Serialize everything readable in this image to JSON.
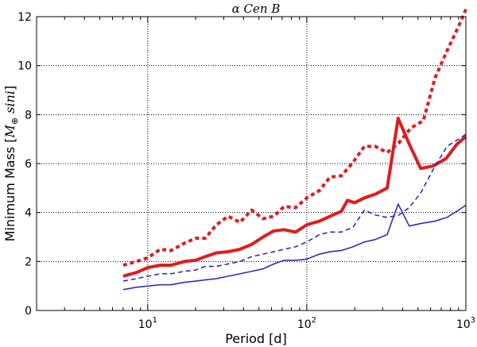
{
  "chart_data": {
    "type": "line",
    "title": "α Cen B",
    "xlabel": "Period [d]",
    "ylabel": {
      "prefix": "Minimum Mass [",
      "mass": "M",
      "sub": "⊕",
      "sini": " sini",
      "suffix": "]"
    },
    "xscale": "log",
    "xlim": [
      2,
      1000
    ],
    "ylim": [
      0,
      12
    ],
    "grid": true,
    "xticks": [
      {
        "value": 10,
        "base": "10",
        "exp": "1"
      },
      {
        "value": 100,
        "base": "10",
        "exp": "2"
      },
      {
        "value": 1000,
        "base": "10",
        "exp": "3"
      }
    ],
    "yticks": [
      {
        "value": 0,
        "label": "0"
      },
      {
        "value": 2,
        "label": "2"
      },
      {
        "value": 4,
        "label": "4"
      },
      {
        "value": 6,
        "label": "6"
      },
      {
        "value": 8,
        "label": "8"
      },
      {
        "value": 10,
        "label": "10"
      },
      {
        "value": 12,
        "label": "12"
      }
    ],
    "series": [
      {
        "color": "#e41a1c",
        "style": "dotted",
        "width": 4,
        "x": [
          7,
          8.5,
          10,
          12,
          14,
          17,
          20,
          23,
          27,
          32,
          38,
          45,
          53,
          62,
          72,
          85,
          100,
          120,
          140,
          165,
          195,
          230,
          270,
          320,
          380,
          450,
          540,
          640,
          760,
          900,
          1000
        ],
        "y": [
          1.85,
          2.0,
          2.15,
          2.5,
          2.45,
          2.75,
          2.95,
          2.95,
          3.5,
          3.85,
          3.6,
          4.1,
          3.75,
          3.85,
          4.25,
          4.2,
          4.6,
          4.9,
          5.45,
          5.5,
          6.05,
          6.7,
          6.7,
          6.45,
          6.85,
          7.45,
          7.75,
          9.5,
          10.6,
          11.6,
          12.3
        ]
      },
      {
        "color": "#e41a1c",
        "style": "solid",
        "width": 4,
        "x": [
          7,
          8.5,
          10,
          12,
          14,
          17,
          20,
          23,
          27,
          32,
          38,
          45,
          53,
          62,
          72,
          85,
          100,
          120,
          140,
          165,
          180,
          200,
          230,
          270,
          320,
          375,
          440,
          520,
          620,
          750,
          880,
          1000
        ],
        "y": [
          1.4,
          1.55,
          1.75,
          1.85,
          1.85,
          2.0,
          2.05,
          2.2,
          2.35,
          2.4,
          2.5,
          2.7,
          3.0,
          3.25,
          3.3,
          3.2,
          3.5,
          3.65,
          3.85,
          4.05,
          4.5,
          4.4,
          4.6,
          4.75,
          5.0,
          7.85,
          6.8,
          5.8,
          5.9,
          6.2,
          6.8,
          7.1
        ]
      },
      {
        "color": "#1f1fcc",
        "style": "dashed",
        "width": 1.5,
        "x": [
          7,
          8.5,
          10,
          12,
          14,
          17,
          20,
          23,
          27,
          32,
          38,
          45,
          53,
          62,
          72,
          85,
          100,
          120,
          140,
          165,
          195,
          230,
          270,
          320,
          380,
          440,
          520,
          640,
          760,
          900,
          1000
        ],
        "y": [
          1.2,
          1.3,
          1.4,
          1.5,
          1.5,
          1.6,
          1.65,
          1.8,
          1.8,
          1.9,
          2.0,
          2.2,
          2.3,
          2.4,
          2.5,
          2.6,
          2.8,
          3.1,
          3.2,
          3.2,
          3.4,
          4.1,
          3.9,
          3.8,
          3.9,
          4.2,
          4.8,
          5.9,
          6.7,
          7.0,
          7.2
        ]
      },
      {
        "color": "#1f1fcc",
        "style": "solid",
        "width": 1.5,
        "x": [
          7,
          8.5,
          10,
          12,
          14,
          17,
          20,
          23,
          27,
          32,
          38,
          45,
          53,
          62,
          72,
          85,
          100,
          120,
          140,
          165,
          195,
          230,
          270,
          320,
          375,
          440,
          520,
          640,
          760,
          900,
          1000
        ],
        "y": [
          0.85,
          0.95,
          1.0,
          1.05,
          1.05,
          1.15,
          1.2,
          1.25,
          1.3,
          1.4,
          1.5,
          1.6,
          1.7,
          1.9,
          2.05,
          2.05,
          2.1,
          2.3,
          2.4,
          2.45,
          2.6,
          2.8,
          2.9,
          3.1,
          4.35,
          3.45,
          3.55,
          3.65,
          3.8,
          4.1,
          4.3
        ]
      }
    ]
  }
}
